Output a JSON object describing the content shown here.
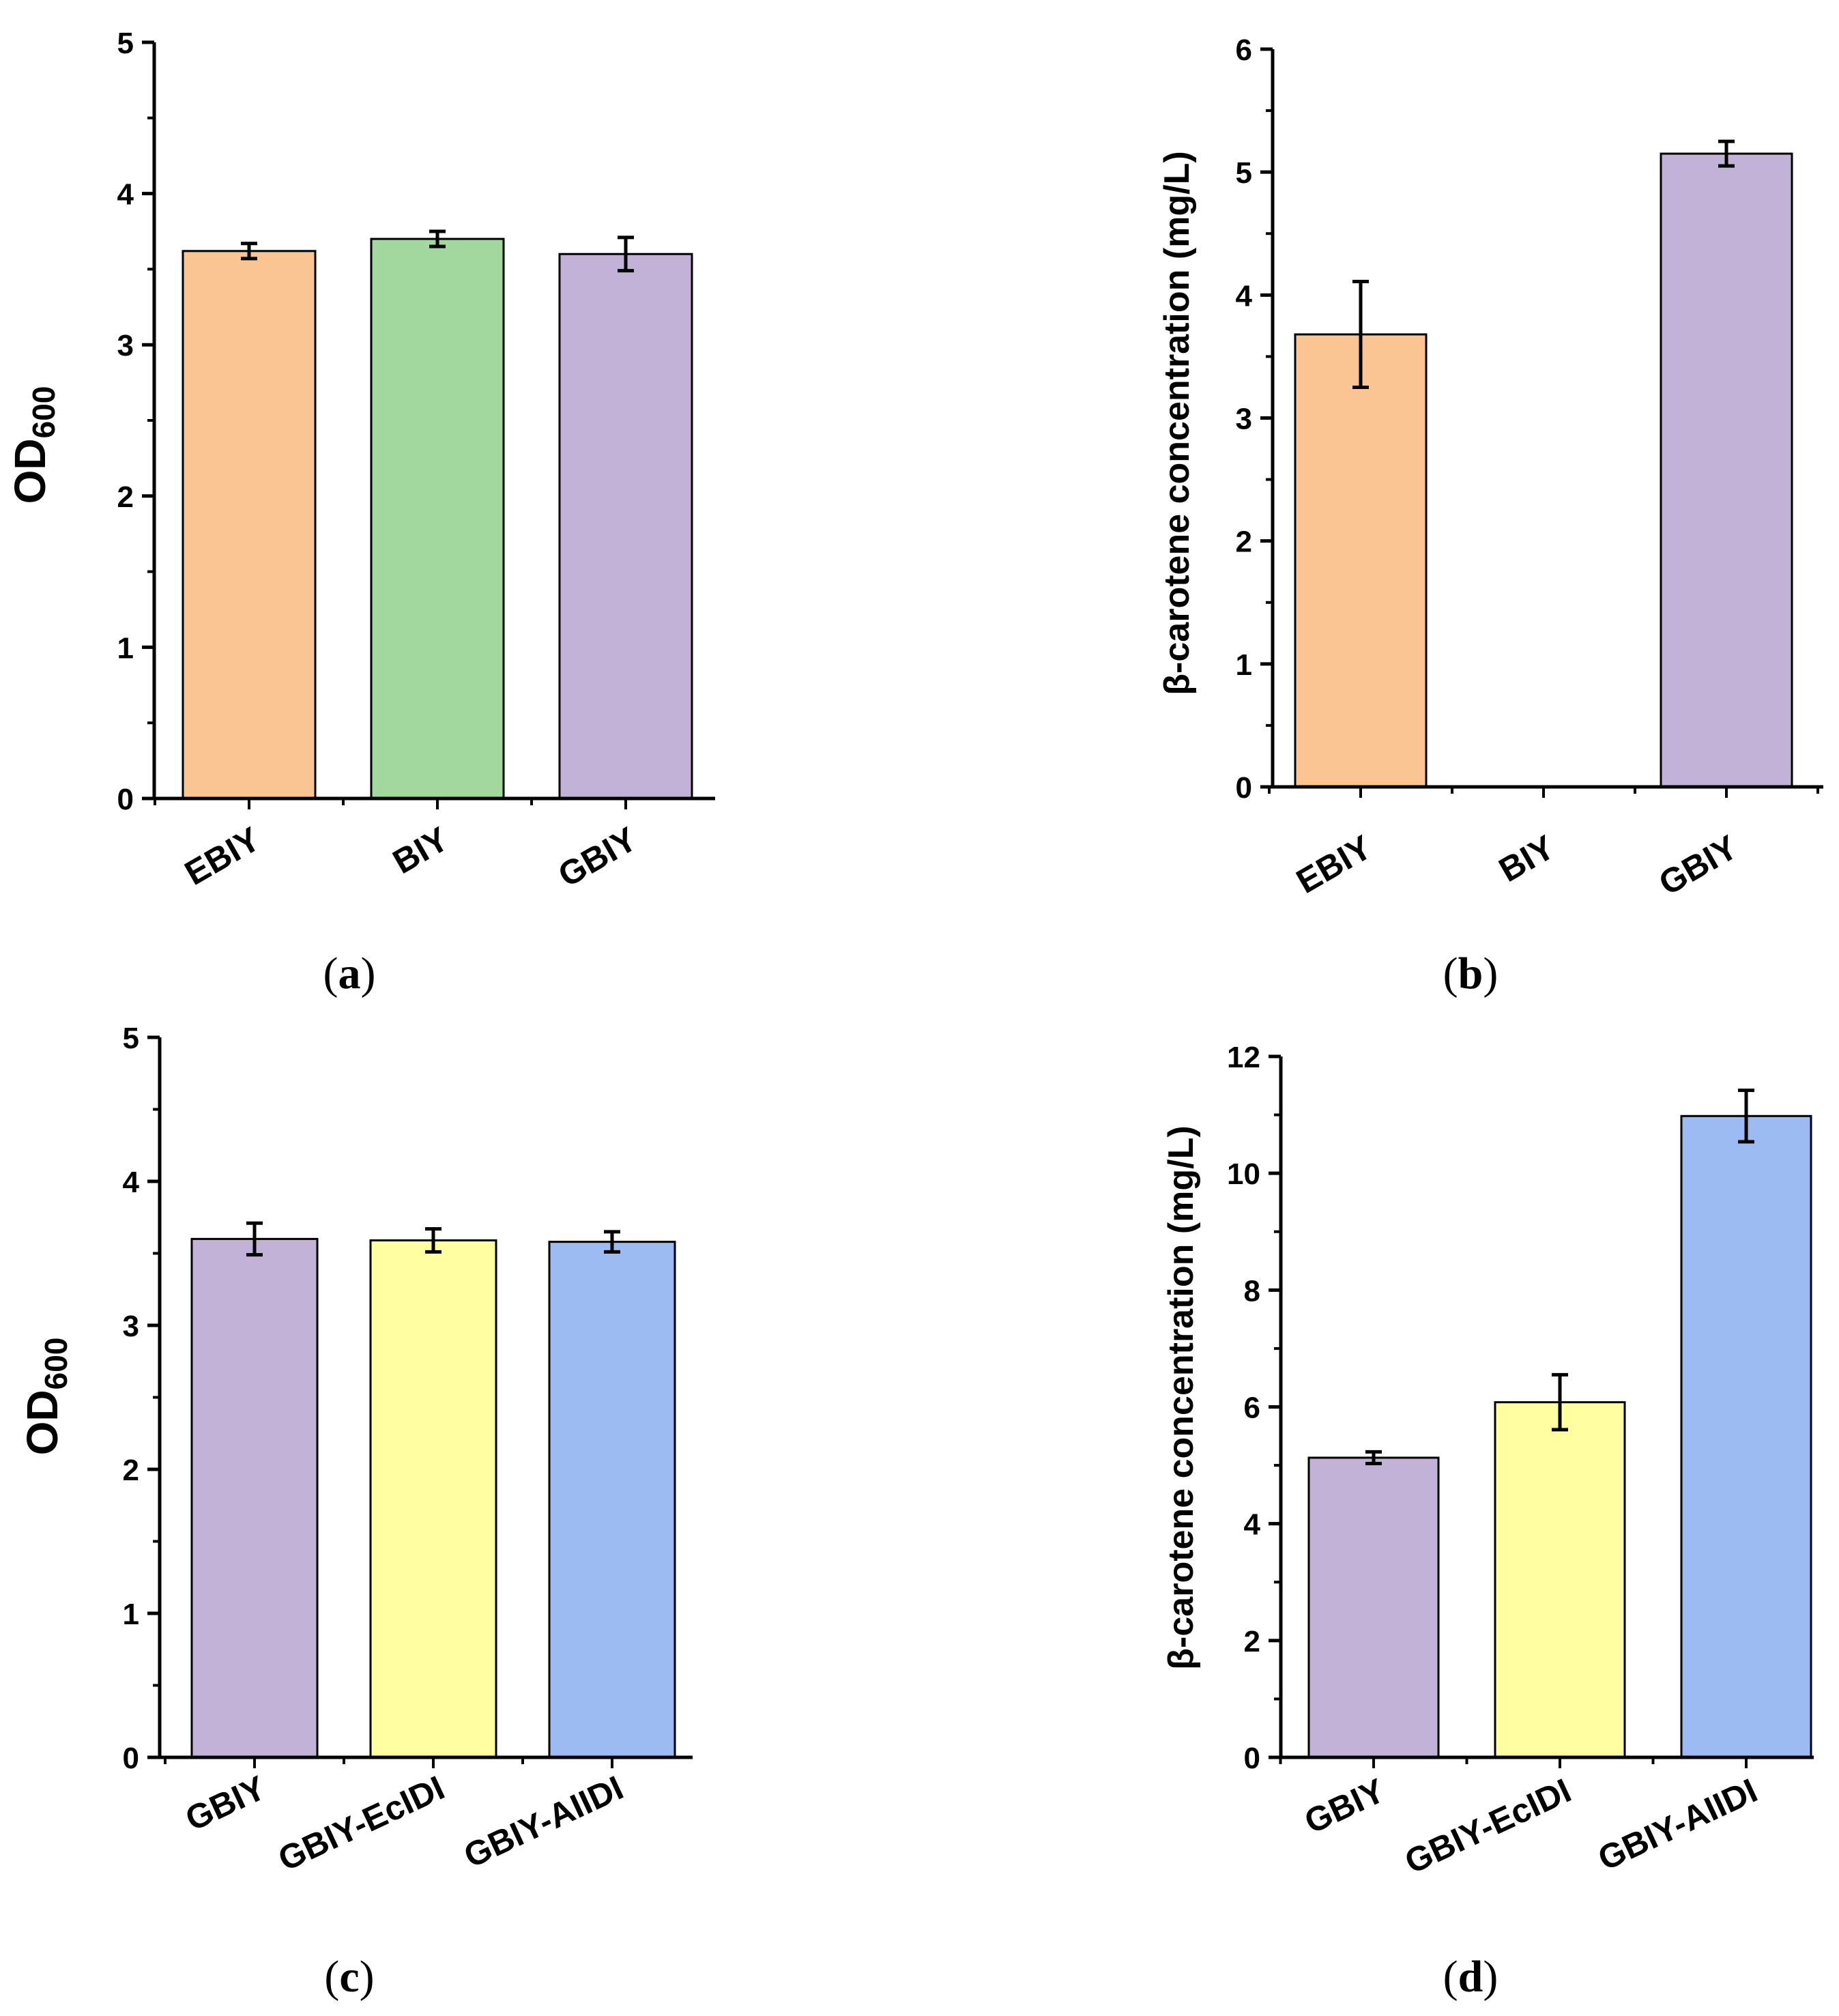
{
  "colors": {
    "orange": "#fbc593",
    "green": "#a0d89e",
    "purple": "#c3b2d7",
    "yellow": "#feff9e",
    "blue": "#9cbbf3",
    "stroke": "#000000"
  },
  "chart_data": [
    {
      "id": "a",
      "type": "bar",
      "panel_label": "a",
      "ylabel": "OD",
      "ylabel_sub": "600",
      "xlabel": "",
      "ylim": [
        0,
        5
      ],
      "yticks": [
        "0",
        "1",
        "2",
        "3",
        "4",
        "5"
      ],
      "categories": [
        "EBIY",
        "BIY",
        "GBIY"
      ],
      "values": [
        3.62,
        3.7,
        3.6
      ],
      "errors": [
        0.05,
        0.05,
        0.11
      ],
      "colors": [
        "orange",
        "green",
        "purple"
      ]
    },
    {
      "id": "b",
      "type": "bar",
      "panel_label": "b",
      "ylabel": "β-carotene concentration (mg/L)",
      "ylabel_sub": "",
      "xlabel": "",
      "ylim": [
        0,
        6
      ],
      "yticks": [
        "0",
        "1",
        "2",
        "3",
        "4",
        "5",
        "6"
      ],
      "categories": [
        "EBIY",
        "BIY",
        "GBIY"
      ],
      "values": [
        3.68,
        0,
        5.15
      ],
      "errors": [
        0.43,
        0,
        0.1
      ],
      "colors": [
        "orange",
        "green",
        "purple"
      ]
    },
    {
      "id": "c",
      "type": "bar",
      "panel_label": "c",
      "ylabel": "OD",
      "ylabel_sub": "600",
      "xlabel": "",
      "ylim": [
        0,
        5
      ],
      "yticks": [
        "0",
        "1",
        "2",
        "3",
        "4",
        "5"
      ],
      "categories": [
        "GBIY",
        "GBIY-EcIDI",
        "GBIY-AIIDI"
      ],
      "values": [
        3.6,
        3.59,
        3.58
      ],
      "errors": [
        0.11,
        0.08,
        0.07
      ],
      "colors": [
        "purple",
        "yellow",
        "blue"
      ]
    },
    {
      "id": "d",
      "type": "bar",
      "panel_label": "d",
      "ylabel": "β-carotene concentration (mg/L)",
      "ylabel_sub": "",
      "xlabel": "",
      "ylim": [
        0,
        12
      ],
      "yticks": [
        "0",
        "2",
        "4",
        "6",
        "8",
        "10",
        "12"
      ],
      "categories": [
        "GBIY",
        "GBIY-EcIDI",
        "GBIY-AIIDI"
      ],
      "values": [
        5.13,
        6.08,
        10.98
      ],
      "errors": [
        0.1,
        0.47,
        0.44
      ],
      "colors": [
        "purple",
        "yellow",
        "blue"
      ]
    }
  ]
}
